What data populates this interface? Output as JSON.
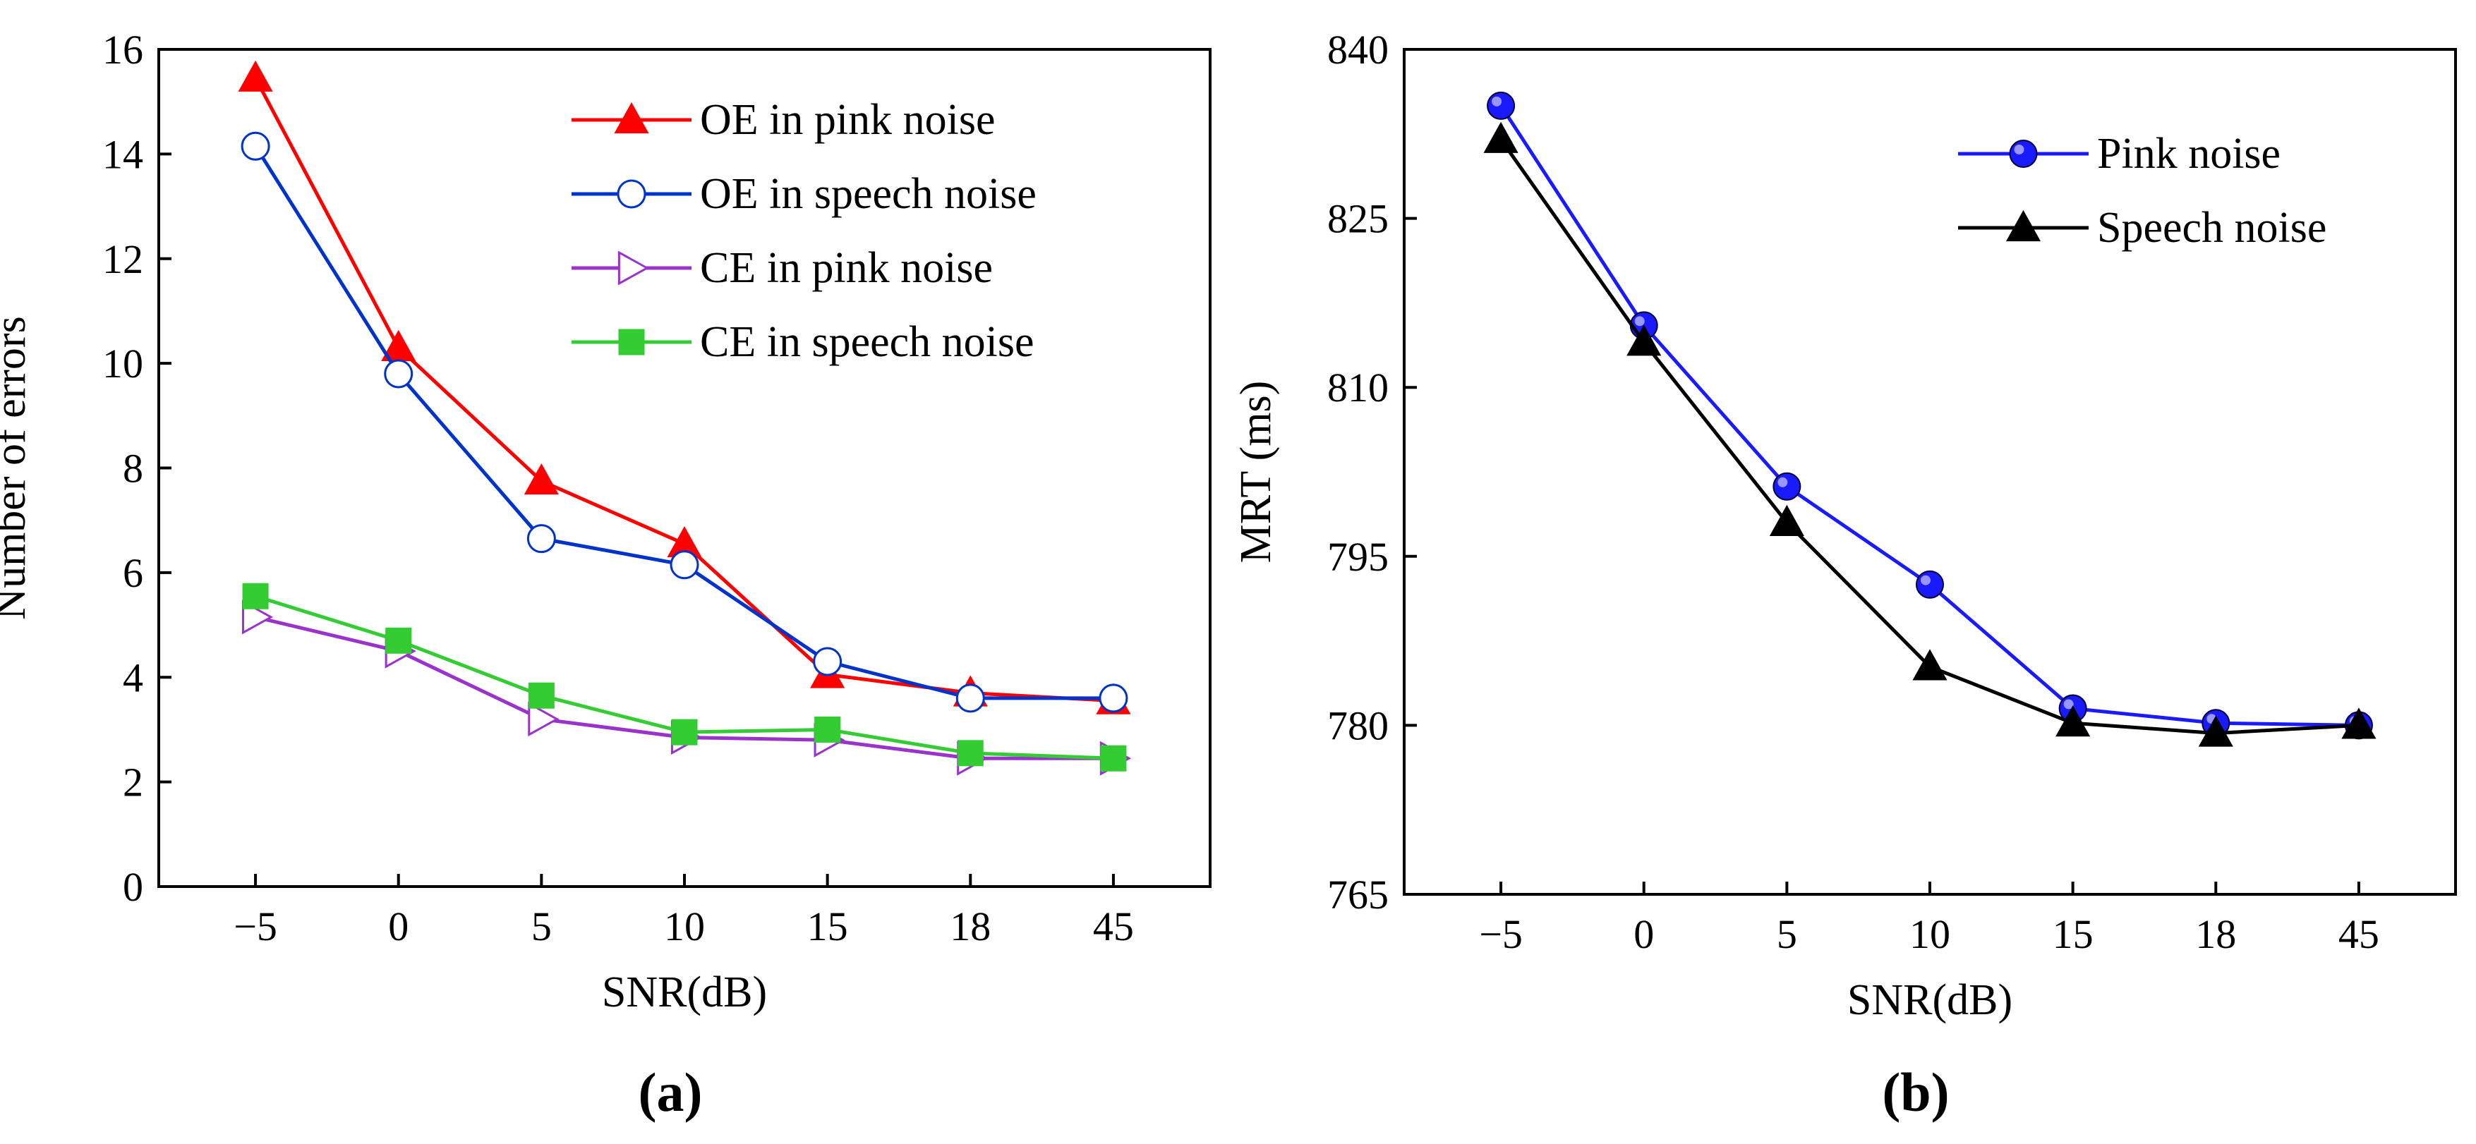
{
  "chart_data": [
    {
      "type": "line",
      "panel_label": "(a)",
      "xlabel": "SNR(dB)",
      "ylabel": "Number of errors",
      "categories": [
        "−5",
        "0",
        "5",
        "10",
        "15",
        "18",
        "45"
      ],
      "ylim": [
        0,
        16
      ],
      "yticks": [
        "0",
        "2",
        "4",
        "6",
        "8",
        "10",
        "12",
        "14",
        "16"
      ],
      "legend_position": "top-right",
      "series": [
        {
          "name": "OE in pink noise",
          "color": "#ff0000",
          "marker": "triangle-up-filled",
          "values": [
            15.45,
            10.3,
            7.75,
            6.55,
            4.05,
            3.7,
            3.55
          ]
        },
        {
          "name": "OE in speech noise",
          "color": "#0033cc",
          "marker": "circle-open",
          "values": [
            14.15,
            9.8,
            6.65,
            6.15,
            4.3,
            3.6,
            3.6
          ]
        },
        {
          "name": "CE in pink noise",
          "color": "#9933cc",
          "marker": "triangle-right-open",
          "values": [
            5.15,
            4.5,
            3.2,
            2.85,
            2.8,
            2.45,
            2.45
          ]
        },
        {
          "name": "CE in speech noise",
          "color": "#33cc33",
          "marker": "square-filled",
          "values": [
            5.55,
            4.7,
            3.65,
            2.95,
            3.0,
            2.55,
            2.45
          ]
        }
      ]
    },
    {
      "type": "line",
      "panel_label": "(b)",
      "xlabel": "SNR(dB)",
      "ylabel": "MRT (ms)",
      "categories": [
        "−5",
        "0",
        "5",
        "10",
        "15",
        "18",
        "45"
      ],
      "ylim": [
        765,
        840
      ],
      "yticks": [
        "765",
        "780",
        "795",
        "810",
        "825",
        "840"
      ],
      "legend_position": "top-right",
      "series": [
        {
          "name": "Pink noise",
          "color": "#1a1aff",
          "marker": "circle-filled",
          "values": [
            835.0,
            815.5,
            801.2,
            792.5,
            781.5,
            780.2,
            780.0
          ]
        },
        {
          "name": "Speech  noise",
          "color": "#000000",
          "marker": "triangle-up-filled",
          "values": [
            832.0,
            814.0,
            798.0,
            785.2,
            780.2,
            779.3,
            780.0
          ]
        }
      ]
    }
  ]
}
